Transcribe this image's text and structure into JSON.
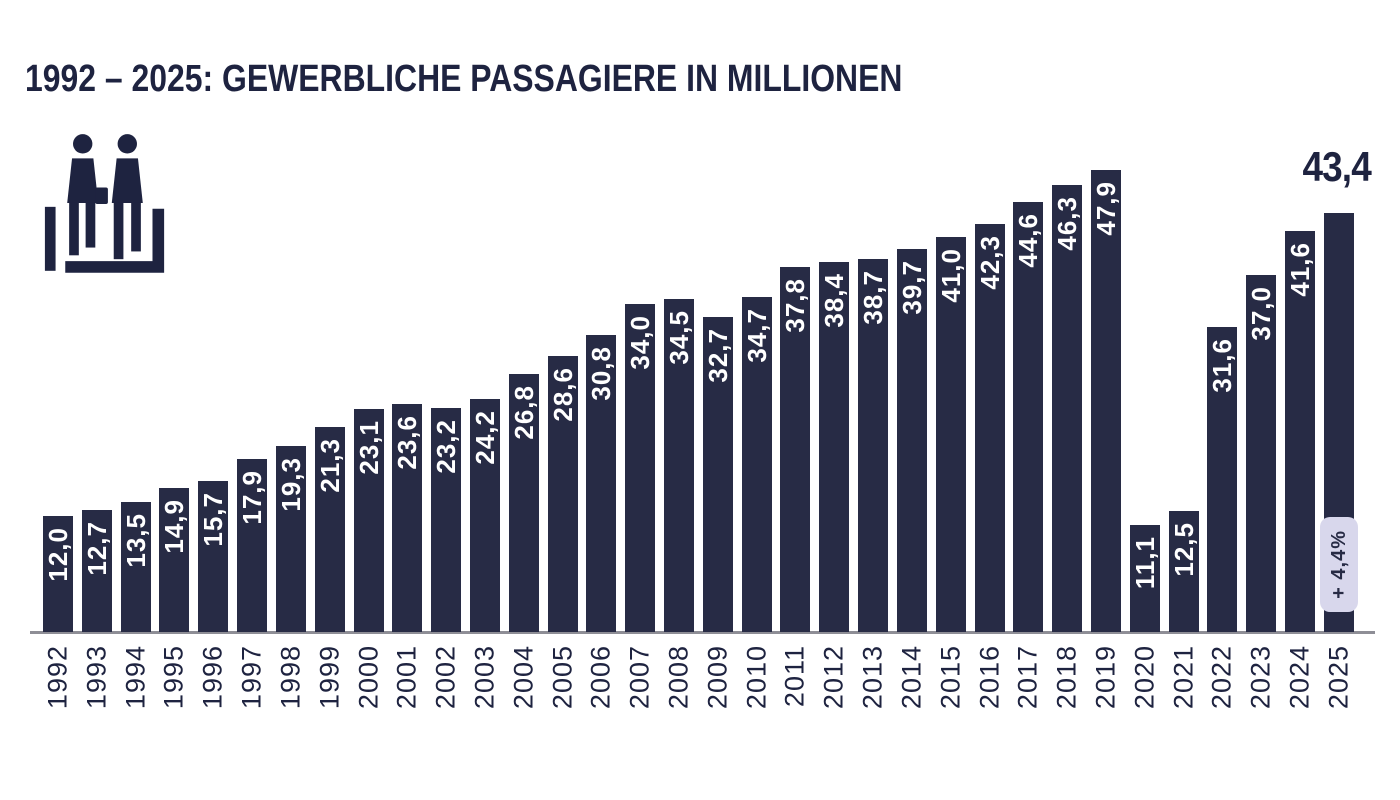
{
  "title": "1992 – 2025: GEWERBLICHE PASSAGIERE IN MILLIONEN",
  "icon": "passengers-icon",
  "colors": {
    "bar": "#272b45",
    "bar_label": "#ffffff",
    "text": "#1e2340",
    "axis_line": "#8e8e96",
    "badge_bg": "#d8d7ec",
    "badge_text": "#272b45"
  },
  "chart_data": {
    "type": "bar",
    "title": "1992 – 2025: GEWERBLICHE PASSAGIERE IN MILLIONEN",
    "categories": [
      "1992",
      "1993",
      "1994",
      "1995",
      "1996",
      "1997",
      "1998",
      "1999",
      "2000",
      "2001",
      "2002",
      "2003",
      "2004",
      "2005",
      "2006",
      "2007",
      "2008",
      "2009",
      "2010",
      "2011",
      "2012",
      "2013",
      "2014",
      "2015",
      "2016",
      "2017",
      "2018",
      "2019",
      "2020",
      "2021",
      "2022",
      "2023",
      "2024",
      "2025"
    ],
    "values": [
      12.0,
      12.7,
      13.5,
      14.9,
      15.7,
      17.9,
      19.3,
      21.3,
      23.1,
      23.6,
      23.2,
      24.2,
      26.8,
      28.6,
      30.8,
      34.0,
      34.5,
      32.7,
      34.7,
      37.8,
      38.4,
      38.7,
      39.7,
      41.0,
      42.3,
      44.6,
      46.3,
      47.9,
      11.1,
      12.5,
      31.6,
      37.0,
      41.6,
      43.4
    ],
    "display_labels": [
      "12,0",
      "12,7",
      "13,5",
      "14,9",
      "15,7",
      "17,9",
      "19,3",
      "21,3",
      "23,1",
      "23,6",
      "23,2",
      "24,2",
      "26,8",
      "28,6",
      "30,8",
      "34,0",
      "34,5",
      "32,7",
      "34,7",
      "37,8",
      "38,4",
      "38,7",
      "39,7",
      "41,0",
      "42,3",
      "44,6",
      "46,3",
      "47,9",
      "11,1",
      "12,5",
      "31,6",
      "37,0",
      "41,6",
      "43,4"
    ],
    "ylim": [
      0,
      47.9
    ],
    "grid": false,
    "legend": false,
    "highlight_last": {
      "year": "2025",
      "value_label": "43,4",
      "badge": "+ 4,4%"
    }
  }
}
